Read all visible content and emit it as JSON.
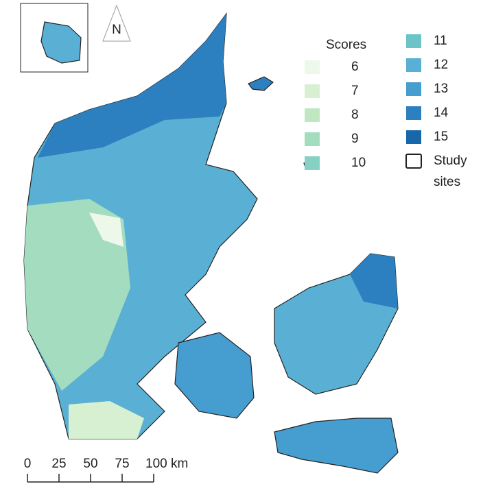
{
  "north_label": "N",
  "legend": {
    "title": "Scores",
    "items": [
      {
        "label": "6",
        "color": "#eef8ea"
      },
      {
        "label": "7",
        "color": "#d8f0d2"
      },
      {
        "label": "8",
        "color": "#c0e7c2"
      },
      {
        "label": "9",
        "color": "#a4dcc0"
      },
      {
        "label": "10",
        "color": "#86d0c4"
      },
      {
        "label": "11",
        "color": "#6cc4c8"
      },
      {
        "label": "12",
        "color": "#5ab0d4"
      },
      {
        "label": "13",
        "color": "#469dd0"
      },
      {
        "label": "14",
        "color": "#2d80bf"
      },
      {
        "label": "15",
        "color": "#1767ab"
      }
    ],
    "outline": {
      "label_lines": [
        "Study",
        "sites"
      ]
    }
  },
  "scale_bar": {
    "ticks": [
      0,
      25,
      50,
      75,
      {
        "value": 100,
        "label": "100 km"
      }
    ]
  }
}
